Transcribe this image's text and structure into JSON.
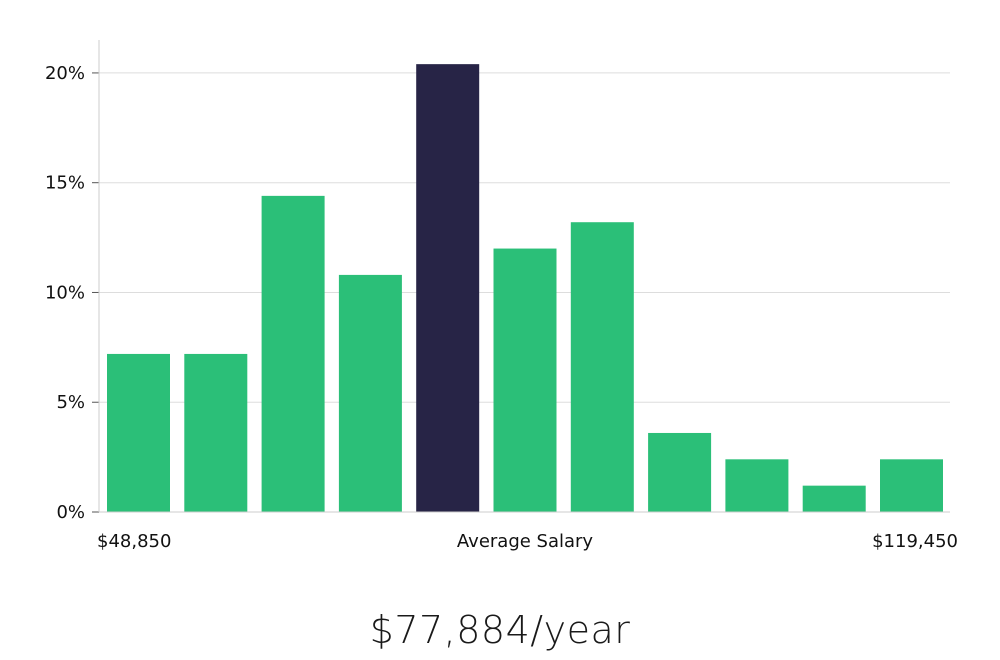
{
  "chart_data": {
    "type": "bar",
    "values": [
      7.2,
      7.2,
      14.4,
      10.8,
      20.4,
      12.0,
      13.2,
      3.6,
      2.4,
      1.2,
      2.4
    ],
    "highlight_index": 4,
    "ylim": [
      0,
      21.5
    ],
    "yticks": [
      0,
      5,
      10,
      15,
      20
    ],
    "ytick_labels": [
      "0%",
      "5%",
      "10%",
      "15%",
      "20%"
    ],
    "x_min_label": "$48,850",
    "x_center_label": "Average Salary",
    "x_max_label": "$119,450",
    "grid": true,
    "colors": {
      "bar": "#2bbf78",
      "highlight": "#272446",
      "grid": "#dddddd",
      "axis": "#cccccc"
    }
  },
  "summary": {
    "average_salary": "$77,884/year"
  }
}
